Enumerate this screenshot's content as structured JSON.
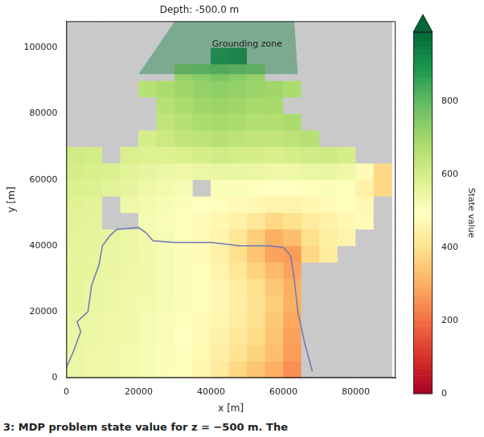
{
  "chart_data": {
    "type": "heatmap",
    "title": "Depth: -500.0 m",
    "x_label": "x [m]",
    "y_label": "y [m]",
    "xlim": [
      0,
      91000
    ],
    "ylim": [
      0,
      108000
    ],
    "xticks": [
      0,
      20000,
      40000,
      60000,
      80000
    ],
    "yticks": [
      0,
      20000,
      40000,
      60000,
      80000,
      100000
    ],
    "grid": false,
    "x_edges": [
      0,
      5000,
      10000,
      15000,
      20000,
      25000,
      30000,
      35000,
      40000,
      45000,
      50000,
      55000,
      60000,
      65000,
      70000,
      75000,
      80000,
      85000,
      90000
    ],
    "y_edges": [
      0,
      5000,
      10000,
      15000,
      20000,
      25000,
      30000,
      35000,
      40000,
      45000,
      50000,
      55000,
      60000,
      65000,
      70000,
      75000,
      80000,
      85000,
      90000,
      95000,
      100000,
      105000,
      110000
    ],
    "cells": [
      [
        545,
        540,
        535,
        525,
        515,
        505,
        490,
        470,
        430,
        380,
        340,
        300,
        250,
        null,
        null,
        null,
        null,
        null
      ],
      [
        545,
        540,
        535,
        525,
        515,
        505,
        490,
        475,
        445,
        410,
        370,
        330,
        270,
        null,
        null,
        null,
        null,
        null
      ],
      [
        550,
        545,
        540,
        530,
        520,
        510,
        495,
        480,
        455,
        425,
        390,
        340,
        280,
        null,
        null,
        null,
        null,
        null
      ],
      [
        550,
        545,
        540,
        530,
        520,
        510,
        500,
        485,
        465,
        440,
        405,
        350,
        290,
        null,
        null,
        null,
        null,
        null
      ],
      [
        555,
        550,
        545,
        535,
        525,
        515,
        505,
        490,
        470,
        445,
        410,
        360,
        300,
        null,
        null,
        null,
        null,
        null
      ],
      [
        555,
        550,
        545,
        540,
        530,
        520,
        505,
        490,
        470,
        440,
        400,
        350,
        300,
        null,
        null,
        null,
        null,
        null
      ],
      [
        560,
        555,
        550,
        540,
        530,
        520,
        505,
        490,
        460,
        420,
        370,
        320,
        280,
        null,
        null,
        null,
        null,
        null
      ],
      [
        560,
        555,
        550,
        545,
        535,
        520,
        505,
        480,
        450,
        400,
        340,
        280,
        270,
        380,
        430,
        null,
        null,
        null
      ],
      [
        565,
        560,
        555,
        545,
        530,
        515,
        500,
        480,
        460,
        420,
        360,
        300,
        330,
        400,
        440,
        460,
        null,
        null
      ],
      [
        570,
        565,
        null,
        null,
        520,
        510,
        500,
        485,
        470,
        450,
        420,
        380,
        400,
        430,
        450,
        470,
        480,
        null
      ],
      [
        575,
        570,
        null,
        540,
        525,
        515,
        505,
        495,
        490,
        480,
        470,
        460,
        460,
        470,
        480,
        490,
        470,
        null
      ],
      [
        585,
        580,
        570,
        555,
        540,
        525,
        515,
        null,
        510,
        505,
        500,
        495,
        495,
        500,
        505,
        500,
        450,
        380
      ],
      [
        600,
        595,
        585,
        570,
        555,
        545,
        540,
        545,
        550,
        550,
        545,
        540,
        540,
        545,
        550,
        540,
        480,
        380
      ],
      [
        610,
        605,
        null,
        590,
        580,
        580,
        590,
        600,
        610,
        605,
        600,
        595,
        600,
        610,
        615,
        600,
        null,
        null
      ],
      [
        null,
        null,
        null,
        null,
        600,
        620,
        640,
        650,
        660,
        650,
        640,
        640,
        650,
        660,
        null,
        null,
        null,
        null
      ],
      [
        null,
        null,
        null,
        null,
        null,
        640,
        660,
        680,
        690,
        680,
        670,
        670,
        680,
        null,
        null,
        null,
        null,
        null
      ],
      [
        null,
        null,
        null,
        null,
        null,
        660,
        680,
        700,
        710,
        700,
        690,
        690,
        null,
        null,
        null,
        null,
        null,
        null
      ],
      [
        null,
        null,
        null,
        null,
        660,
        680,
        700,
        720,
        730,
        720,
        710,
        700,
        680,
        null,
        null,
        null,
        null,
        null
      ],
      [
        null,
        null,
        null,
        null,
        null,
        null,
        720,
        740,
        760,
        740,
        720,
        null,
        null,
        null,
        null,
        null,
        null,
        null
      ],
      [
        null,
        null,
        null,
        null,
        null,
        null,
        null,
        null,
        930,
        950,
        null,
        null,
        null,
        null,
        null,
        null,
        null,
        null
      ],
      [
        null,
        null,
        null,
        null,
        null,
        null,
        null,
        null,
        null,
        null,
        null,
        null,
        null,
        null,
        null,
        null,
        null,
        null
      ],
      [
        null,
        null,
        null,
        null,
        null,
        null,
        null,
        null,
        null,
        null,
        null,
        null,
        null,
        null,
        null,
        null,
        null,
        null
      ]
    ],
    "colorbar": {
      "label": "State value",
      "range": [
        0,
        990
      ],
      "ticks": [
        0,
        200,
        400,
        600,
        800
      ]
    },
    "contour": {
      "color": "#6a78b8",
      "x": [
        0,
        2000,
        4000,
        3000,
        6000,
        7000,
        9000,
        10000,
        12000,
        14000,
        20000,
        22000,
        24000,
        30000,
        40000,
        48000,
        56000,
        60000,
        62000,
        63000,
        64000,
        66000,
        68000
      ],
      "y": [
        3000,
        8000,
        14000,
        17000,
        20000,
        28000,
        34000,
        40000,
        43000,
        45000,
        45500,
        44000,
        41500,
        41000,
        41000,
        40000,
        40000,
        39500,
        37000,
        30000,
        20000,
        10000,
        2000
      ]
    },
    "annotations": [
      {
        "text": "Grounding zone",
        "x": 50000,
        "y": 101000,
        "polygon": {
          "x": [
            20000,
            64000,
            63000,
            30000
          ],
          "y": [
            92000,
            92000,
            108000,
            108000
          ]
        },
        "color": "#2e8b57"
      }
    ],
    "caption": "3: MDP problem state value for z = −500 m. The"
  }
}
